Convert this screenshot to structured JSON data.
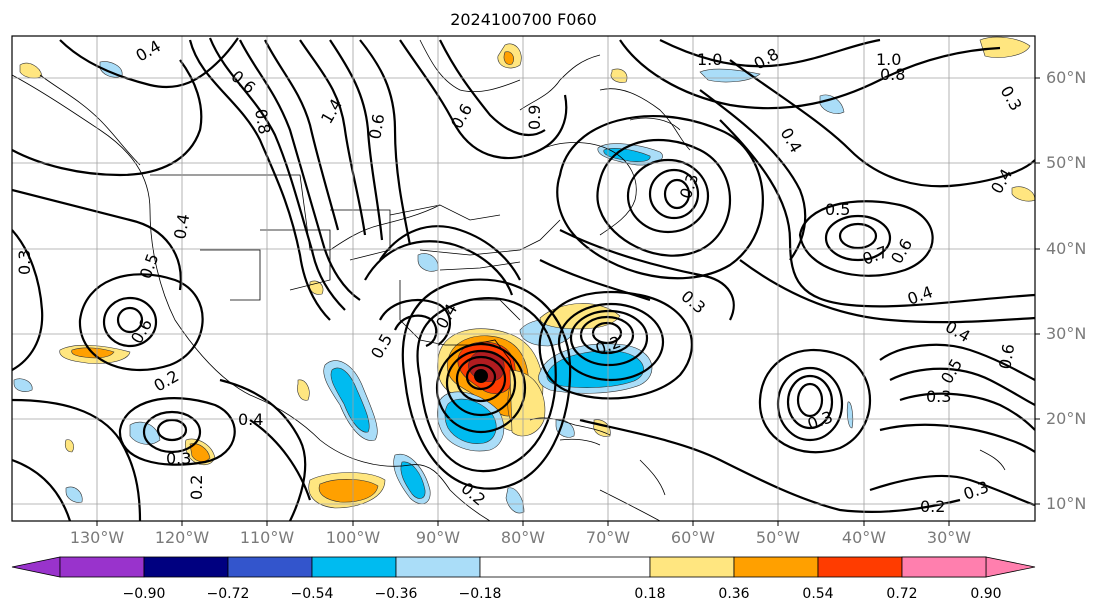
{
  "title": "2024100700 F060",
  "lat_labels": [
    "60°N",
    "50°N",
    "40°N",
    "30°N",
    "20°N",
    "10°N"
  ],
  "lon_labels": [
    "130°W",
    "120°W",
    "110°W",
    "100°W",
    "90°W",
    "80°W",
    "70°W",
    "60°W",
    "50°W",
    "40°W",
    "30°W"
  ],
  "contour_labels": [
    "0.4",
    "1.0",
    "0.8",
    "0.6",
    "1.0",
    "0.8",
    "0.3",
    "0.8",
    "1.4",
    "0.6",
    "0.6",
    "0.9",
    "0.4",
    "0.5",
    "0.7",
    "0.6",
    "0.4",
    "0.4",
    "0.3",
    "0.3",
    "0.5",
    "0.6",
    "0.5",
    "0.6",
    "0.2",
    "0.4",
    "0.3",
    "0.4",
    "0.3",
    "0.2",
    "0.3",
    "0.2",
    "0.2",
    "0.5",
    "0.3",
    "0.4",
    "0.4",
    "0.2",
    "0.3"
  ],
  "colorbar": {
    "ticks": [
      "−0.90",
      "−0.72",
      "−0.54",
      "−0.36",
      "−0.18",
      "0.18",
      "0.36",
      "0.54",
      "0.72",
      "0.90"
    ],
    "colors": [
      "#9933cc",
      "#000080",
      "#3355cc",
      "#00bbf0",
      "#aaddf8",
      "#ffffff",
      "#ffe680",
      "#ffa000",
      "#ff3c00",
      "#b01c20",
      "#ff7fae"
    ]
  },
  "colors": {
    "frame": "#000000",
    "grid": "#a0a0a0",
    "axis_label": "#7a7a7a",
    "storm_center": "#000000"
  }
}
